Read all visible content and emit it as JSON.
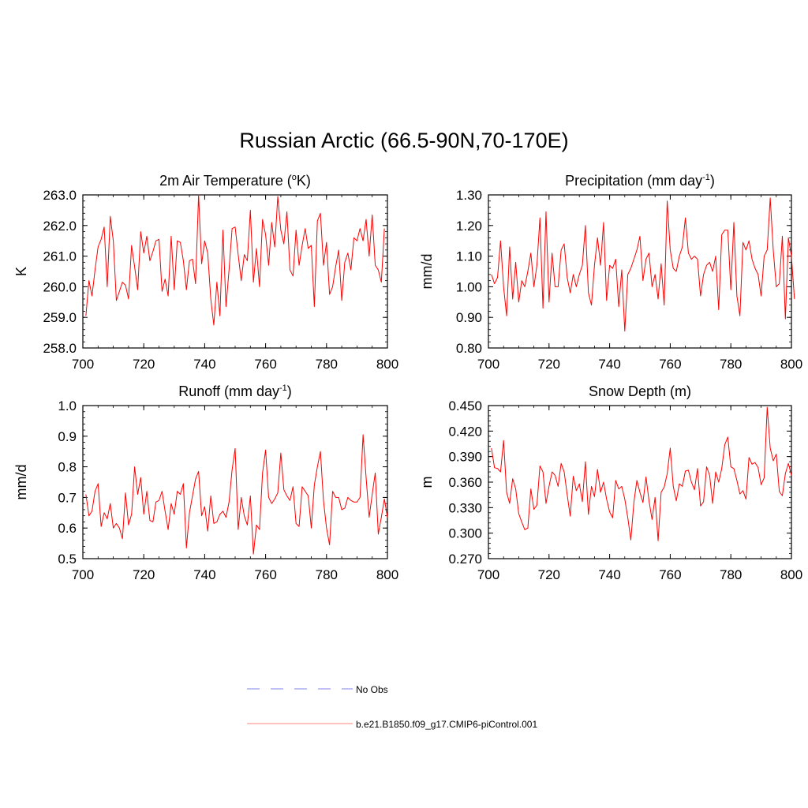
{
  "title": "Russian Arctic (66.5-90N,70-170E)",
  "colors": {
    "series": "#ff0000",
    "obs": "#9a9af0",
    "axis": "#000000",
    "background": "#ffffff"
  },
  "legend": {
    "entries": [
      {
        "label": "No Obs",
        "style": "dashed",
        "color": "#9a9af0"
      },
      {
        "label": "b.e21.B1850.f09_g17.CMIP6-piControl.001",
        "style": "solid",
        "color": "#ff9a9a"
      }
    ]
  },
  "chart_data": [
    {
      "type": "line",
      "title_main": "2m Air Temperature (",
      "title_sup": "o",
      "title_end": "K)",
      "ylabel": "K",
      "xlabel": "",
      "xlim": [
        700,
        800
      ],
      "ylim": [
        258.0,
        263.0
      ],
      "xticks": [
        700,
        720,
        740,
        760,
        780,
        800
      ],
      "xtick_labels": [
        "700",
        "720",
        "740",
        "760",
        "780",
        "800"
      ],
      "yticks": [
        258.0,
        259.0,
        260.0,
        261.0,
        262.0,
        263.0
      ],
      "ytick_labels": [
        "258.0",
        "259.0",
        "260.0",
        "261.0",
        "262.0",
        "263.0"
      ],
      "series": [
        {
          "name": "b.e21.B1850.f09_g17.CMIP6-piControl.001",
          "x_start": 701,
          "x_step": 1,
          "values": [
            259.05,
            260.2,
            259.7,
            260.55,
            261.3,
            261.55,
            261.95,
            260.0,
            262.3,
            261.5,
            259.55,
            259.85,
            260.15,
            260.05,
            259.6,
            261.35,
            260.65,
            259.9,
            261.8,
            261.1,
            261.65,
            260.85,
            261.15,
            261.5,
            261.55,
            259.85,
            260.25,
            259.7,
            261.65,
            259.9,
            261.5,
            261.45,
            260.85,
            259.9,
            260.85,
            260.9,
            260.1,
            263.0,
            260.75,
            261.5,
            261.1,
            259.6,
            258.75,
            260.15,
            259.05,
            261.85,
            259.35,
            260.55,
            261.9,
            261.95,
            261.05,
            260.2,
            261.05,
            260.85,
            262.5,
            260.15,
            261.25,
            260.0,
            262.2,
            261.7,
            260.7,
            262.1,
            261.3,
            262.95,
            261.85,
            261.4,
            262.45,
            260.55,
            260.35,
            261.85,
            260.7,
            261.35,
            261.9,
            261.25,
            261.35,
            259.35,
            262.15,
            262.4,
            260.7,
            261.45,
            259.75,
            260.0,
            260.65,
            261.2,
            259.55,
            260.8,
            261.1,
            260.55,
            261.6,
            261.5,
            261.9,
            261.5,
            262.2,
            261.0,
            262.35,
            260.7,
            260.55,
            260.15,
            261.9
          ]
        }
      ]
    },
    {
      "type": "line",
      "title_main": "Precipitation (mm day",
      "title_sup": "-1",
      "title_end": ")",
      "ylabel": "mm/d",
      "xlabel": "",
      "xlim": [
        700,
        800
      ],
      "ylim": [
        0.8,
        1.3
      ],
      "xticks": [
        700,
        720,
        740,
        760,
        780,
        800
      ],
      "xtick_labels": [
        "700",
        "720",
        "740",
        "760",
        "780",
        "800"
      ],
      "yticks": [
        0.8,
        0.9,
        1.0,
        1.1,
        1.2,
        1.3
      ],
      "ytick_labels": [
        "0.80",
        "0.90",
        "1.00",
        "1.10",
        "1.20",
        "1.30"
      ],
      "series": [
        {
          "name": "b.e21.B1850.f09_g17.CMIP6-piControl.001",
          "x_start": 701,
          "x_step": 1,
          "values": [
            1.04,
            1.01,
            1.03,
            1.15,
            1.0,
            0.905,
            1.13,
            0.96,
            1.08,
            0.95,
            1.02,
            1.0,
            1.05,
            1.11,
            1.0,
            1.07,
            1.225,
            0.93,
            1.245,
            0.95,
            1.11,
            1.0,
            1.0,
            1.12,
            1.14,
            1.03,
            0.98,
            1.04,
            1.0,
            1.04,
            1.07,
            1.2,
            0.98,
            0.94,
            1.07,
            1.16,
            1.07,
            1.21,
            0.955,
            1.07,
            1.06,
            1.09,
            0.935,
            1.055,
            0.855,
            1.04,
            1.06,
            1.09,
            1.12,
            1.165,
            1.02,
            1.09,
            1.11,
            1.0,
            1.04,
            0.96,
            1.075,
            0.94,
            1.28,
            1.12,
            1.06,
            1.05,
            1.1,
            1.13,
            1.225,
            1.11,
            1.09,
            1.1,
            1.09,
            0.97,
            1.04,
            1.07,
            1.08,
            1.05,
            1.1,
            0.925,
            1.17,
            1.185,
            1.185,
            0.99,
            1.21,
            0.97,
            0.905,
            1.145,
            1.12,
            1.15,
            1.09,
            1.06,
            1.04,
            0.97,
            1.1,
            1.12,
            1.29,
            1.12,
            1.0,
            1.01,
            1.165,
            0.895,
            1.16,
            1.1,
            0.96
          ]
        }
      ]
    },
    {
      "type": "line",
      "title_main": "Runoff (mm day",
      "title_sup": "-1",
      "title_end": ")",
      "ylabel": "mm/d",
      "xlabel": "",
      "xlim": [
        700,
        800
      ],
      "ylim": [
        0.5,
        1.0
      ],
      "xticks": [
        700,
        720,
        740,
        760,
        780,
        800
      ],
      "xtick_labels": [
        "700",
        "720",
        "740",
        "760",
        "780",
        "800"
      ],
      "yticks": [
        0.5,
        0.6,
        0.7,
        0.8,
        0.9,
        1.0
      ],
      "ytick_labels": [
        "0.5",
        "0.6",
        "0.7",
        "0.8",
        "0.9",
        "1.0"
      ],
      "series": [
        {
          "name": "b.e21.B1850.f09_g17.CMIP6-piControl.001",
          "x_start": 701,
          "x_step": 1,
          "values": [
            0.71,
            0.64,
            0.655,
            0.72,
            0.745,
            0.605,
            0.65,
            0.63,
            0.68,
            0.6,
            0.615,
            0.6,
            0.565,
            0.715,
            0.61,
            0.645,
            0.8,
            0.71,
            0.765,
            0.645,
            0.72,
            0.625,
            0.62,
            0.685,
            0.69,
            0.72,
            0.655,
            0.595,
            0.68,
            0.645,
            0.72,
            0.71,
            0.745,
            0.535,
            0.65,
            0.705,
            0.76,
            0.785,
            0.64,
            0.67,
            0.59,
            0.705,
            0.615,
            0.62,
            0.645,
            0.655,
            0.635,
            0.685,
            0.79,
            0.86,
            0.595,
            0.7,
            0.64,
            0.61,
            0.705,
            0.515,
            0.61,
            0.595,
            0.78,
            0.855,
            0.7,
            0.68,
            0.695,
            0.715,
            0.845,
            0.725,
            0.705,
            0.69,
            0.735,
            0.615,
            0.605,
            0.735,
            0.72,
            0.705,
            0.6,
            0.74,
            0.8,
            0.85,
            0.69,
            0.6,
            0.545,
            0.72,
            0.7,
            0.7,
            0.66,
            0.665,
            0.7,
            0.69,
            0.685,
            0.685,
            0.7,
            0.905,
            0.765,
            0.635,
            0.71,
            0.78,
            0.58,
            0.635,
            0.695,
            0.635
          ]
        }
      ]
    },
    {
      "type": "line",
      "title_main": "Snow Depth (m)",
      "title_sup": "",
      "title_end": "",
      "ylabel": "m",
      "xlabel": "",
      "xlim": [
        700,
        800
      ],
      "ylim": [
        0.27,
        0.45
      ],
      "xticks": [
        700,
        720,
        740,
        760,
        780,
        800
      ],
      "xtick_labels": [
        "700",
        "720",
        "740",
        "760",
        "780",
        "800"
      ],
      "yticks": [
        0.27,
        0.3,
        0.33,
        0.36,
        0.39,
        0.42,
        0.45
      ],
      "ytick_labels": [
        "0.270",
        "0.300",
        "0.330",
        "0.360",
        "0.390",
        "0.420",
        "0.450"
      ],
      "series": [
        {
          "name": "b.e21.B1850.f09_g17.CMIP6-piControl.001",
          "x_start": 701,
          "x_step": 1,
          "values": [
            0.4,
            0.377,
            0.376,
            0.372,
            0.409,
            0.348,
            0.335,
            0.364,
            0.352,
            0.323,
            0.313,
            0.304,
            0.306,
            0.352,
            0.328,
            0.333,
            0.379,
            0.372,
            0.335,
            0.355,
            0.372,
            0.368,
            0.355,
            0.382,
            0.372,
            0.345,
            0.32,
            0.367,
            0.35,
            0.358,
            0.337,
            0.384,
            0.322,
            0.355,
            0.343,
            0.375,
            0.348,
            0.36,
            0.34,
            0.325,
            0.318,
            0.362,
            0.352,
            0.355,
            0.34,
            0.318,
            0.292,
            0.336,
            0.362,
            0.348,
            0.336,
            0.366,
            0.338,
            0.316,
            0.342,
            0.291,
            0.348,
            0.354,
            0.37,
            0.4,
            0.355,
            0.338,
            0.358,
            0.355,
            0.373,
            0.374,
            0.36,
            0.351,
            0.376,
            0.332,
            0.337,
            0.378,
            0.368,
            0.335,
            0.372,
            0.36,
            0.376,
            0.404,
            0.413,
            0.378,
            0.376,
            0.362,
            0.346,
            0.35,
            0.34,
            0.389,
            0.381,
            0.383,
            0.377,
            0.357,
            0.365,
            0.448,
            0.4,
            0.385,
            0.393,
            0.349,
            0.344,
            0.37,
            0.382,
            0.368
          ]
        }
      ]
    }
  ]
}
